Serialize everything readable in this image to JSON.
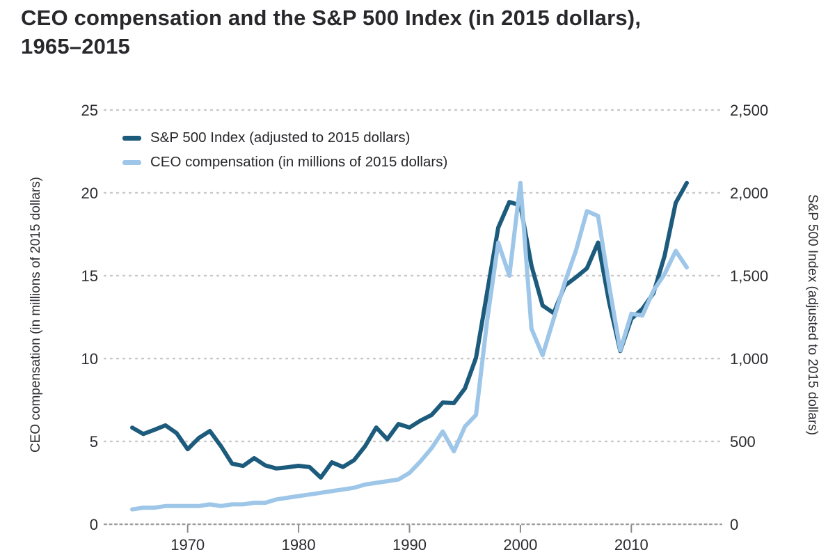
{
  "title": {
    "line1": "CEO compensation and the S&P 500 Index (in 2015 dollars),",
    "line2": "1965–2015"
  },
  "colors": {
    "sp500_line": "#1d5b7c",
    "ceo_line": "#9dc6e8",
    "text": "#28282c",
    "tick_label": "#2b2b30",
    "gridline": "#c9c9c9",
    "axis_line": "#9e9e9e",
    "tick_mark": "#8a8a8a",
    "background": "#ffffff"
  },
  "legend": {
    "items": [
      {
        "label": "S&P 500 Index (adjusted to 2015 dollars)",
        "color": "#1d5b7c"
      },
      {
        "label": "CEO compensation (in millions of 2015 dollars)",
        "color": "#9dc6e8"
      }
    ]
  },
  "chart_data": {
    "type": "line",
    "title": "CEO compensation and the S&P 500 Index (in 2015 dollars), 1965–2015",
    "grid": "dotted horizontal gridlines at every left-axis tick",
    "legend_position": "inside top-left",
    "x": [
      1965,
      1966,
      1967,
      1968,
      1969,
      1970,
      1971,
      1972,
      1973,
      1974,
      1975,
      1976,
      1977,
      1978,
      1979,
      1980,
      1981,
      1982,
      1983,
      1984,
      1985,
      1986,
      1987,
      1988,
      1989,
      1990,
      1991,
      1992,
      1993,
      1994,
      1995,
      1996,
      1997,
      1998,
      1999,
      2000,
      2001,
      2002,
      2003,
      2004,
      2005,
      2006,
      2007,
      2008,
      2009,
      2010,
      2011,
      2012,
      2013,
      2014,
      2015
    ],
    "x_axis": {
      "ticks": [
        1970,
        1980,
        1990,
        2000,
        2010
      ],
      "range": [
        1965,
        2015
      ]
    },
    "left_axis": {
      "label": "CEO compensation (in millions of 2015 dollars)",
      "ticks": [
        0,
        5,
        10,
        15,
        20,
        25
      ],
      "range": [
        0,
        25
      ]
    },
    "right_axis": {
      "label": "S&P 500 Index (adjusted to 2015 dollars)",
      "tick_labels": [
        "0",
        "500",
        "1,000",
        "1,500",
        "2,000",
        "2,500"
      ],
      "ticks": [
        0,
        500,
        1000,
        1500,
        2000,
        2500
      ],
      "range": [
        0,
        2500
      ]
    },
    "series": [
      {
        "name": "S&P 500 Index (adjusted to 2015 dollars)",
        "axis": "right",
        "color": "#1d5b7c",
        "values": [
          583,
          545,
          570,
          597,
          550,
          453,
          520,
          563,
          472,
          366,
          352,
          399,
          355,
          337,
          344,
          353,
          345,
          282,
          374,
          346,
          387,
          471,
          584,
          513,
          605,
          584,
          626,
          660,
          735,
          731,
          820,
          1005,
          1400,
          1790,
          1945,
          1925,
          1560,
          1320,
          1275,
          1440,
          1490,
          1545,
          1700,
          1340,
          1045,
          1240,
          1300,
          1395,
          1620,
          1940,
          2060
        ]
      },
      {
        "name": "CEO compensation (in millions of 2015 dollars)",
        "axis": "left",
        "color": "#9dc6e8",
        "values": [
          0.9,
          1.0,
          1.0,
          1.1,
          1.1,
          1.1,
          1.1,
          1.2,
          1.1,
          1.2,
          1.2,
          1.3,
          1.3,
          1.5,
          1.6,
          1.7,
          1.8,
          1.9,
          2.0,
          2.1,
          2.2,
          2.4,
          2.5,
          2.6,
          2.7,
          3.1,
          3.8,
          4.6,
          5.6,
          4.4,
          5.9,
          6.6,
          12.3,
          17.0,
          15.0,
          20.6,
          11.8,
          10.2,
          12.4,
          14.6,
          16.5,
          18.9,
          18.6,
          14.4,
          10.5,
          12.7,
          12.6,
          14.1,
          15.1,
          16.5,
          15.5
        ]
      }
    ]
  }
}
